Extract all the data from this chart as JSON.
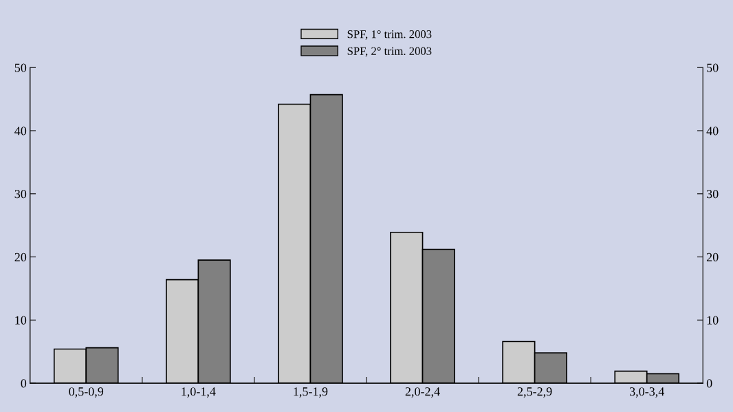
{
  "chart_data": {
    "type": "bar",
    "categories": [
      "0,5-0,9",
      "1,0-1,4",
      "1,5-1,9",
      "2,0-2,4",
      "2,5-2,9",
      "3,0-3,4"
    ],
    "series": [
      {
        "name": "SPF, 1° trim. 2003",
        "color": "#cccccc",
        "values": [
          5.4,
          16.4,
          44.2,
          23.9,
          6.6,
          1.9
        ]
      },
      {
        "name": "SPF, 2° trim. 2003",
        "color": "#808080",
        "values": [
          5.6,
          19.5,
          45.7,
          21.2,
          4.8,
          1.5
        ]
      }
    ],
    "ylim": [
      0,
      50
    ],
    "yticks": [
      0,
      10,
      20,
      30,
      40,
      50
    ],
    "y2lim": [
      0,
      50
    ],
    "y2ticks": [
      0,
      10,
      20,
      30,
      40,
      50
    ],
    "grid": false,
    "legend": "top"
  }
}
